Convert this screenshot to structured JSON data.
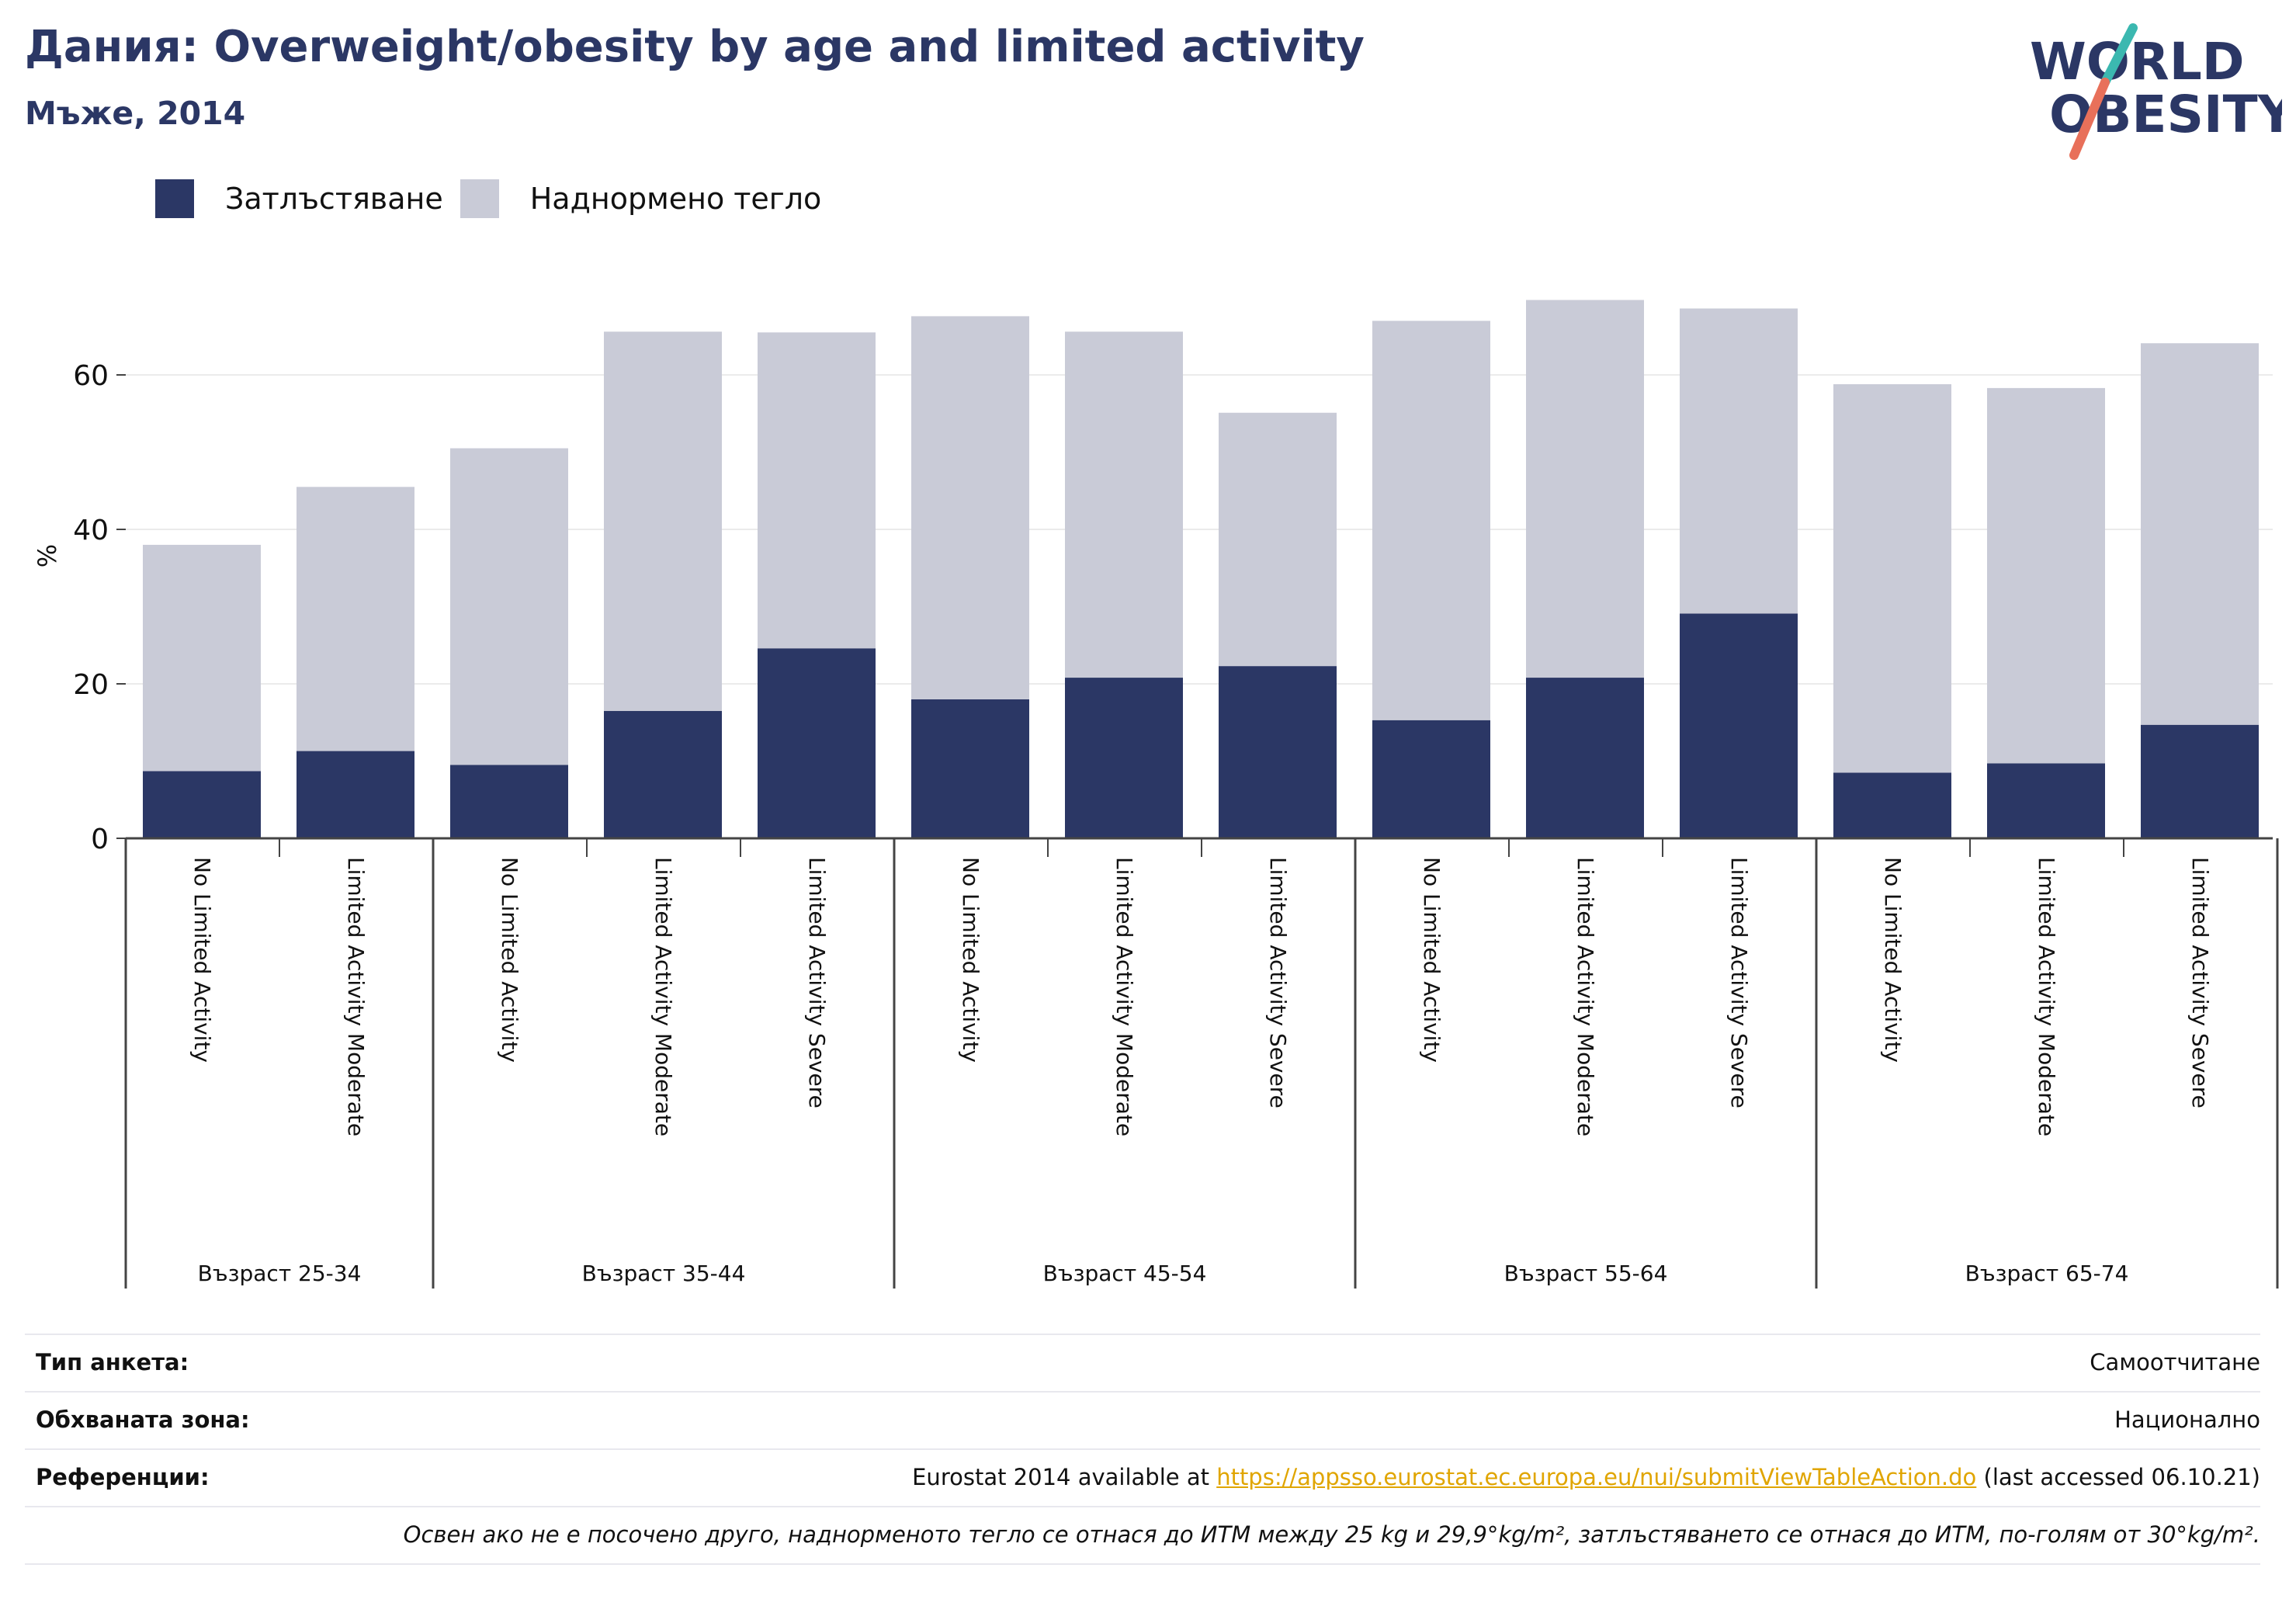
{
  "header": {
    "title": "Дания: Overweight/obesity by age and limited activity",
    "subtitle": "Мъже, 2014"
  },
  "logo": {
    "line1": "WORLD",
    "line2": "OBESITY",
    "colors": {
      "text": "#2b3765",
      "slash_top": "#3bb8b0",
      "slash_bottom": "#e8705a"
    }
  },
  "legend": [
    {
      "label": "Затлъстяване",
      "color": "#2b3765"
    },
    {
      "label": "Наднормено тегло",
      "color": "#c9cbd7"
    }
  ],
  "chart_data": {
    "type": "bar",
    "stacked": true,
    "ylabel": "%",
    "ylim": [
      0,
      75
    ],
    "yticks": [
      0,
      20,
      40,
      60
    ],
    "grid": true,
    "legend_position": "top-left",
    "groups": [
      {
        "label": "Възраст 25-34",
        "categories": [
          "No Limited Activity",
          "Limited Activity Moderate"
        ]
      },
      {
        "label": "Възраст 35-44",
        "categories": [
          "No Limited Activity",
          "Limited Activity Moderate",
          "Limited Activity Severe"
        ]
      },
      {
        "label": "Възраст 45-54",
        "categories": [
          "No Limited Activity",
          "Limited Activity Moderate",
          "Limited Activity Severe"
        ]
      },
      {
        "label": "Възраст 55-64",
        "categories": [
          "No Limited Activity",
          "Limited Activity Moderate",
          "Limited Activity Severe"
        ]
      },
      {
        "label": "Възраст 65-74",
        "categories": [
          "No Limited Activity",
          "Limited Activity Moderate",
          "Limited Activity Severe"
        ]
      }
    ],
    "series": [
      {
        "name": "Затлъстяване",
        "color": "#2b3765",
        "values": [
          8.7,
          11.3,
          9.5,
          16.5,
          24.6,
          18.0,
          20.8,
          22.3,
          15.3,
          20.8,
          29.1,
          8.5,
          9.7,
          14.7
        ]
      },
      {
        "name": "Наднормено тегло",
        "color": "#c9cbd7",
        "values": [
          29.3,
          34.2,
          41.0,
          49.1,
          40.9,
          49.6,
          44.8,
          32.8,
          51.7,
          48.9,
          39.5,
          50.3,
          48.6,
          49.4
        ]
      }
    ]
  },
  "info": {
    "survey_type": {
      "label": "Тип анкета:",
      "value": "Самоотчитане"
    },
    "coverage": {
      "label": "Обхваната зона:",
      "value": "Национално"
    },
    "references": {
      "label": "Референции:",
      "prefix": "Eurostat 2014 available at ",
      "link": "https://appsso.eurostat.ec.europa.eu/nui/submitViewTableAction.do",
      "suffix": " (last accessed 06.10.21)"
    },
    "note": "Освен ако не е посочено друго, наднорменото тегло се отнася до ИТМ между 25 kg и 29,9°kg/m², затлъстяването се отнася до ИТМ, по-голям от 30°kg/m²."
  }
}
